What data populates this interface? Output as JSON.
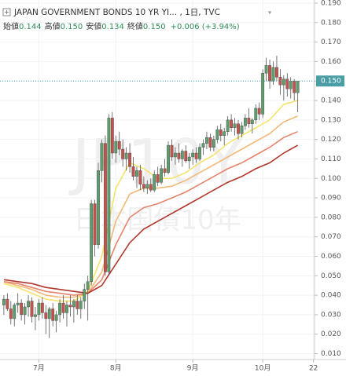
{
  "chart_data": {
    "type": "candlestick",
    "title": "JAPAN GOVERNMENT BONDS 10 YR YI... , 1日, TVC",
    "legend_items": [
      {
        "label": "始値",
        "value": "0.144"
      },
      {
        "label": "高値",
        "value": "0.150"
      },
      {
        "label": "安値",
        "value": "0.134"
      },
      {
        "label": "終値",
        "value": "0.150"
      }
    ],
    "change": "+0.006 (+3.94%)",
    "watermark": [
      "JP10Y",
      "日本国債10年"
    ],
    "up_color": "#5e9e6c",
    "down_color": "#c4534b",
    "open": [
      0.035,
      0.038,
      0.033,
      0.028,
      0.035,
      0.036,
      0.03,
      0.034,
      0.037,
      0.029,
      0.03,
      0.036,
      0.031,
      0.028,
      0.033,
      0.027,
      0.03,
      0.036,
      0.031,
      0.035,
      0.034,
      0.037,
      0.033,
      0.037,
      0.043,
      0.047,
      0.087,
      0.066,
      0.104,
      0.118,
      0.052,
      0.131,
      0.113,
      0.119,
      0.115,
      0.11,
      0.113,
      0.106,
      0.101,
      0.104,
      0.097,
      0.095,
      0.097,
      0.094,
      0.102,
      0.098,
      0.105,
      0.103,
      0.117,
      0.111,
      0.113,
      0.11,
      0.114,
      0.109,
      0.111,
      0.113,
      0.11,
      0.116,
      0.118,
      0.121,
      0.116,
      0.12,
      0.125,
      0.122,
      0.124,
      0.13,
      0.126,
      0.128,
      0.123,
      0.127,
      0.131,
      0.128,
      0.13,
      0.136,
      0.133,
      0.154,
      0.158,
      0.15,
      0.157,
      0.152,
      0.148,
      0.151,
      0.146,
      0.15,
      0.144
    ],
    "high": [
      0.04,
      0.041,
      0.037,
      0.036,
      0.041,
      0.038,
      0.036,
      0.04,
      0.039,
      0.034,
      0.038,
      0.039,
      0.035,
      0.034,
      0.036,
      0.032,
      0.038,
      0.04,
      0.037,
      0.04,
      0.038,
      0.04,
      0.039,
      0.046,
      0.05,
      0.089,
      0.089,
      0.108,
      0.12,
      0.122,
      0.133,
      0.134,
      0.122,
      0.124,
      0.12,
      0.116,
      0.118,
      0.111,
      0.106,
      0.107,
      0.101,
      0.099,
      0.1,
      0.104,
      0.106,
      0.107,
      0.11,
      0.119,
      0.12,
      0.116,
      0.118,
      0.115,
      0.117,
      0.113,
      0.115,
      0.116,
      0.118,
      0.12,
      0.124,
      0.123,
      0.122,
      0.127,
      0.128,
      0.126,
      0.132,
      0.133,
      0.131,
      0.13,
      0.129,
      0.133,
      0.136,
      0.131,
      0.138,
      0.139,
      0.156,
      0.162,
      0.161,
      0.16,
      0.163,
      0.156,
      0.153,
      0.154,
      0.152,
      0.151,
      0.15
    ],
    "low": [
      0.03,
      0.032,
      0.025,
      0.024,
      0.031,
      0.027,
      0.025,
      0.029,
      0.026,
      0.022,
      0.027,
      0.028,
      0.02,
      0.018,
      0.024,
      0.021,
      0.026,
      0.028,
      0.024,
      0.029,
      0.026,
      0.03,
      0.028,
      0.033,
      0.027,
      0.045,
      0.06,
      0.064,
      0.098,
      0.05,
      0.05,
      0.11,
      0.108,
      0.112,
      0.106,
      0.104,
      0.103,
      0.099,
      0.095,
      0.094,
      0.093,
      0.092,
      0.093,
      0.093,
      0.096,
      0.097,
      0.101,
      0.102,
      0.109,
      0.107,
      0.108,
      0.106,
      0.108,
      0.105,
      0.107,
      0.108,
      0.109,
      0.112,
      0.115,
      0.114,
      0.114,
      0.118,
      0.119,
      0.117,
      0.122,
      0.124,
      0.122,
      0.12,
      0.121,
      0.125,
      0.126,
      0.123,
      0.128,
      0.13,
      0.131,
      0.15,
      0.146,
      0.148,
      0.15,
      0.143,
      0.14,
      0.142,
      0.141,
      0.14,
      0.134
    ],
    "close": [
      0.038,
      0.033,
      0.028,
      0.035,
      0.036,
      0.03,
      0.034,
      0.037,
      0.029,
      0.03,
      0.036,
      0.031,
      0.028,
      0.033,
      0.027,
      0.03,
      0.036,
      0.031,
      0.035,
      0.034,
      0.037,
      0.033,
      0.037,
      0.043,
      0.047,
      0.087,
      0.066,
      0.104,
      0.118,
      0.052,
      0.131,
      0.113,
      0.119,
      0.115,
      0.11,
      0.113,
      0.106,
      0.101,
      0.104,
      0.097,
      0.095,
      0.097,
      0.094,
      0.102,
      0.098,
      0.105,
      0.103,
      0.117,
      0.111,
      0.113,
      0.11,
      0.114,
      0.109,
      0.111,
      0.113,
      0.11,
      0.116,
      0.118,
      0.121,
      0.116,
      0.12,
      0.125,
      0.122,
      0.124,
      0.13,
      0.126,
      0.128,
      0.123,
      0.127,
      0.131,
      0.128,
      0.13,
      0.136,
      0.133,
      0.154,
      0.158,
      0.15,
      0.157,
      0.152,
      0.148,
      0.151,
      0.146,
      0.15,
      0.144,
      0.15
    ],
    "lines": [
      {
        "color": "#f3e46a",
        "x": [
          0,
          4,
          8,
          12,
          16,
          20,
          24,
          28,
          32,
          36,
          40,
          44,
          48,
          52,
          56,
          60,
          64,
          68,
          72,
          76,
          80,
          84
        ],
        "values": [
          0.046,
          0.044,
          0.041,
          0.038,
          0.037,
          0.037,
          0.042,
          0.06,
          0.095,
          0.108,
          0.105,
          0.1,
          0.1,
          0.103,
          0.108,
          0.112,
          0.118,
          0.122,
          0.126,
          0.13,
          0.138,
          0.14
        ]
      },
      {
        "color": "#f2b877",
        "x": [
          0,
          4,
          8,
          12,
          16,
          20,
          24,
          28,
          32,
          36,
          40,
          44,
          48,
          52,
          56,
          60,
          64,
          68,
          72,
          76,
          80,
          84
        ],
        "values": [
          0.047,
          0.045,
          0.043,
          0.04,
          0.039,
          0.039,
          0.041,
          0.052,
          0.078,
          0.092,
          0.095,
          0.095,
          0.096,
          0.099,
          0.103,
          0.107,
          0.111,
          0.115,
          0.119,
          0.123,
          0.129,
          0.132
        ]
      },
      {
        "color": "#e5846c",
        "x": [
          0,
          4,
          8,
          12,
          16,
          20,
          24,
          28,
          32,
          36,
          40,
          44,
          48,
          52,
          56,
          60,
          64,
          68,
          72,
          76,
          80,
          84
        ],
        "values": [
          0.047,
          0.046,
          0.044,
          0.042,
          0.041,
          0.04,
          0.041,
          0.048,
          0.066,
          0.08,
          0.085,
          0.087,
          0.09,
          0.093,
          0.097,
          0.101,
          0.105,
          0.108,
          0.112,
          0.116,
          0.121,
          0.124
        ]
      },
      {
        "color": "#b2362c",
        "x": [
          0,
          4,
          8,
          12,
          16,
          20,
          24,
          28,
          32,
          36,
          40,
          44,
          48,
          52,
          56,
          60,
          64,
          68,
          72,
          76,
          80,
          84
        ],
        "values": [
          0.048,
          0.047,
          0.046,
          0.044,
          0.043,
          0.042,
          0.041,
          0.045,
          0.056,
          0.067,
          0.074,
          0.078,
          0.082,
          0.086,
          0.09,
          0.094,
          0.098,
          0.101,
          0.105,
          0.108,
          0.113,
          0.117
        ]
      }
    ],
    "last_price": {
      "value": 0.15,
      "label": "0.150"
    },
    "last_price_color": "#4a9ea6",
    "xlim": [
      -1.1,
      88.8
    ],
    "xticks": [
      {
        "value": 10,
        "label": "7月"
      },
      {
        "value": 32,
        "label": "8月"
      },
      {
        "value": 54,
        "label": "9月"
      },
      {
        "value": 74,
        "label": "10月"
      },
      {
        "value": 88.5,
        "label": "22"
      }
    ],
    "ylim": [
      0.007,
      0.1916
    ],
    "yticks": [
      {
        "value": 0.01,
        "label": "0.010"
      },
      {
        "value": 0.02,
        "label": "0.020"
      },
      {
        "value": 0.03,
        "label": "0.030"
      },
      {
        "value": 0.04,
        "label": "0.040"
      },
      {
        "value": 0.05,
        "label": "0.050"
      },
      {
        "value": 0.06,
        "label": "0.060"
      },
      {
        "value": 0.07,
        "label": "0.070"
      },
      {
        "value": 0.08,
        "label": "0.080"
      },
      {
        "value": 0.09,
        "label": "0.090"
      },
      {
        "value": 0.1,
        "label": "0.100"
      },
      {
        "value": 0.11,
        "label": "0.110"
      },
      {
        "value": 0.12,
        "label": "0.120"
      },
      {
        "value": 0.13,
        "label": "0.130"
      },
      {
        "value": 0.14,
        "label": "0.140"
      },
      {
        "value": 0.15,
        "label": "0.150"
      },
      {
        "value": 0.16,
        "label": "0.160"
      },
      {
        "value": 0.17,
        "label": "0.170"
      },
      {
        "value": 0.18,
        "label": "0.180"
      },
      {
        "value": 0.19,
        "label": "0.190"
      }
    ],
    "grid": true
  }
}
